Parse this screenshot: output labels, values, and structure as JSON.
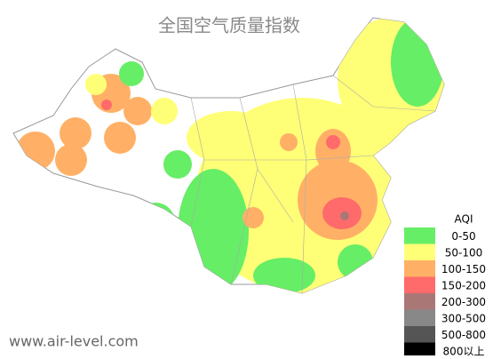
{
  "title": "全国空气质量指数",
  "watermark": "www.air-level.com",
  "legend": {
    "title": "AQI",
    "items": [
      {
        "label": "0-50",
        "color": "#66ee66"
      },
      {
        "label": "50-100",
        "color": "#ffff77"
      },
      {
        "label": "100-150",
        "color": "#ffb066"
      },
      {
        "label": "150-200",
        "color": "#ff6a6a"
      },
      {
        "label": "200-300",
        "color": "#aa7777"
      },
      {
        "label": "300-500",
        "color": "#888888"
      },
      {
        "label": "500-800",
        "color": "#555555"
      },
      {
        "label": "800以上",
        "color": "#000000"
      }
    ]
  }
}
